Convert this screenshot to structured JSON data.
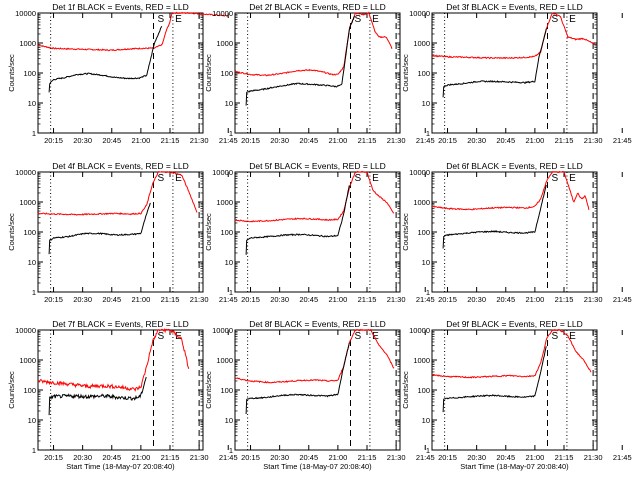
{
  "chart_data": [
    {
      "type": "line",
      "title": "Det 1f BLACK = Events, RED = LLD",
      "xlabel": "",
      "ylabel": "Counts/sec",
      "xticks": [
        "20:15",
        "20:30",
        "20:45",
        "21:00",
        "21:15",
        "21:30",
        "21:45"
      ],
      "yticks": [
        "1",
        "10",
        "100",
        "1000",
        "10000"
      ],
      "ylim": [
        1,
        10000
      ],
      "yscale": "log",
      "markers": [
        "S",
        "E"
      ],
      "series": [
        {
          "name": "Events",
          "color": "#000000",
          "x": [
            -3,
            -1,
            0.5,
            7,
            12,
            17,
            20,
            26,
            30,
            35,
            39,
            45,
            49,
            54,
            58,
            61
          ],
          "y": [
            null,
            null,
            null,
            null,
            null,
            null,
            null,
            null,
            null,
            null,
            null,
            null,
            null,
            null,
            null,
            null
          ]
        }
      ]
    },
    {
      "type": "line",
      "title": "Det 2f BLACK = Events, RED = LLD",
      "xlabel": "",
      "ylabel": "Counts/sec",
      "xticks": [
        "20:15",
        "20:30",
        "20:45",
        "21:00",
        "21:15",
        "21:30",
        "21:45"
      ],
      "yticks": [
        "1",
        "10",
        "100",
        "1000",
        "10000"
      ],
      "ylim": [
        1,
        10000
      ],
      "yscale": "log",
      "markers": [
        "S",
        "E"
      ]
    },
    {
      "type": "line",
      "title": "Det 3f BLACK = Events, RED = LLD",
      "xlabel": "",
      "ylabel": "Counts/sec",
      "xticks": [
        "20:15",
        "20:30",
        "20:45",
        "21:00",
        "21:15",
        "21:30",
        "21:45"
      ],
      "yticks": [
        "1",
        "10",
        "100",
        "1000",
        "10000"
      ],
      "ylim": [
        1,
        10000
      ],
      "yscale": "log",
      "markers": [
        "S",
        "E"
      ]
    },
    {
      "type": "line",
      "title": "Det 4f BLACK = Events, RED = LLD",
      "xlabel": "",
      "ylabel": "Counts/sec",
      "xticks": [
        "20:15",
        "20:30",
        "20:45",
        "21:00",
        "21:15",
        "21:30",
        "21:45"
      ],
      "yticks": [
        "1",
        "10",
        "100",
        "1000",
        "10000"
      ],
      "ylim": [
        1,
        10000
      ],
      "yscale": "log",
      "markers": [
        "S",
        "E"
      ]
    },
    {
      "type": "line",
      "title": "Det 5f BLACK = Events, RED = LLD",
      "xlabel": "",
      "ylabel": "Counts/sec",
      "xticks": [
        "20:15",
        "20:30",
        "20:45",
        "21:00",
        "21:15",
        "21:30",
        "21:45"
      ],
      "yticks": [
        "1",
        "10",
        "100",
        "1000",
        "10000"
      ],
      "ylim": [
        1,
        10000
      ],
      "yscale": "log",
      "markers": [
        "S",
        "E"
      ]
    },
    {
      "type": "line",
      "title": "Det 6f BLACK = Events, RED = LLD",
      "xlabel": "",
      "ylabel": "Counts/sec",
      "xticks": [
        "20:15",
        "20:30",
        "20:45",
        "21:00",
        "21:15",
        "21:30",
        "21:45"
      ],
      "yticks": [
        "1",
        "10",
        "100",
        "1000",
        "10000"
      ],
      "ylim": [
        1,
        10000
      ],
      "yscale": "log",
      "markers": [
        "S",
        "E"
      ]
    },
    {
      "type": "line",
      "title": "Det 7f BLACK = Events, RED = LLD",
      "xlabel": "Start Time (18-May-07 20:08:40)",
      "ylabel": "Counts/sec",
      "xticks": [
        "20:15",
        "20:30",
        "20:45",
        "21:00",
        "21:15",
        "21:30",
        "21:45"
      ],
      "yticks": [
        "1",
        "10",
        "100",
        "1000",
        "10000"
      ],
      "ylim": [
        1,
        10000
      ],
      "yscale": "log",
      "markers": [
        "S",
        "E"
      ]
    },
    {
      "type": "line",
      "title": "Det 8f BLACK = Events, RED = LLD",
      "xlabel": "Start Time (18-May-07 20:08:40)",
      "ylabel": "Counts/sec",
      "xticks": [
        "20:15",
        "20:30",
        "20:45",
        "21:00",
        "21:15",
        "21:30",
        "21:45"
      ],
      "yticks": [
        "1",
        "10",
        "100",
        "1000",
        "10000"
      ],
      "ylim": [
        1,
        10000
      ],
      "yscale": "log",
      "markers": [
        "S",
        "E"
      ]
    },
    {
      "type": "line",
      "title": "Det 9f BLACK = Events, RED = LLD",
      "xlabel": "Start Time (18-May-07 20:08:40)",
      "ylabel": "Counts/sec",
      "xticks": [
        "20:15",
        "20:30",
        "20:45",
        "21:00",
        "21:15",
        "21:30",
        "21:45"
      ],
      "yticks": [
        "1",
        "10",
        "100",
        "1000",
        "10000"
      ],
      "ylim": [
        1,
        10000
      ],
      "yscale": "log",
      "markers": [
        "S",
        "E"
      ]
    }
  ]
}
